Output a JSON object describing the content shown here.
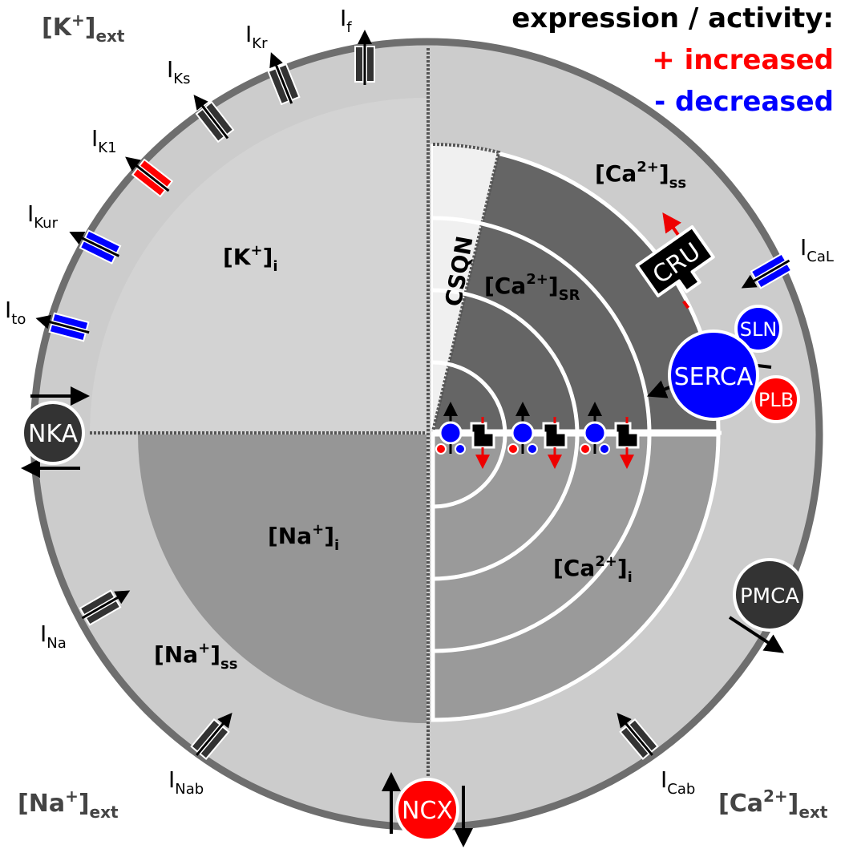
{
  "legend": {
    "title": "expression / activity:",
    "increased": "+ increased",
    "decreased": "- decreased",
    "increased_color": "#ff0000",
    "decreased_color": "#0000ff"
  },
  "external": {
    "k": {
      "base": "[K",
      "sup": "+",
      "close": "]",
      "sub": "ext"
    },
    "na": {
      "base": "[Na",
      "sup": "+",
      "close": "]",
      "sub": "ext"
    },
    "ca": {
      "base": "[Ca",
      "sup": "2+",
      "close": "]",
      "sub": "ext"
    }
  },
  "compartments": {
    "k_i": {
      "base": "[K",
      "sup": "+",
      "close": "]",
      "sub": "i"
    },
    "na_i": {
      "base": "[Na",
      "sup": "+",
      "close": "]",
      "sub": "i"
    },
    "na_ss": {
      "base": "[Na",
      "sup": "+",
      "close": "]",
      "sub": "ss"
    },
    "ca_ss": {
      "base": "[Ca",
      "sup": "2+",
      "close": "]",
      "sub": "ss"
    },
    "ca_sr": {
      "base": "[Ca",
      "sup": "2+",
      "close": "]",
      "sub": "SR"
    },
    "ca_i": {
      "base": "[Ca",
      "sup": "2+",
      "close": "]",
      "sub": "i"
    },
    "csqn": "CSQN"
  },
  "currents": {
    "If": {
      "base": "I",
      "sub": "f",
      "status": "unchanged"
    },
    "IKr": {
      "base": "I",
      "sub": "Kr",
      "status": "unchanged"
    },
    "IKs": {
      "base": "I",
      "sub": "Ks",
      "status": "unchanged"
    },
    "IK1": {
      "base": "I",
      "sub": "K1",
      "status": "increased"
    },
    "IKur": {
      "base": "I",
      "sub": "Kur",
      "status": "decreased"
    },
    "Ito": {
      "base": "I",
      "sub": "to",
      "status": "decreased"
    },
    "INa": {
      "base": "I",
      "sub": "Na",
      "status": "unchanged"
    },
    "INab": {
      "base": "I",
      "sub": "Nab",
      "status": "unchanged"
    },
    "ICab": {
      "base": "I",
      "sub": "Cab",
      "status": "unchanged"
    },
    "ICaL": {
      "base": "I",
      "sub": "CaL",
      "status": "decreased"
    }
  },
  "pumps": {
    "nka": "NKA",
    "ncx": "NCX",
    "pmca": "PMCA",
    "serca": "SERCA",
    "sln": "SLN",
    "plb": "PLB",
    "cru": "CRU"
  },
  "colors": {
    "membrane": "#6e6e6e",
    "outer_ring": "#cccccc",
    "k_quadrant": "#d3d3d3",
    "na_i": "#969696",
    "sr_dark": "#656565",
    "ca_i": "#9a9a9a",
    "csqn": "#f0f0f0",
    "channel_neutral": "#333333",
    "pump_dark": "#333333"
  }
}
